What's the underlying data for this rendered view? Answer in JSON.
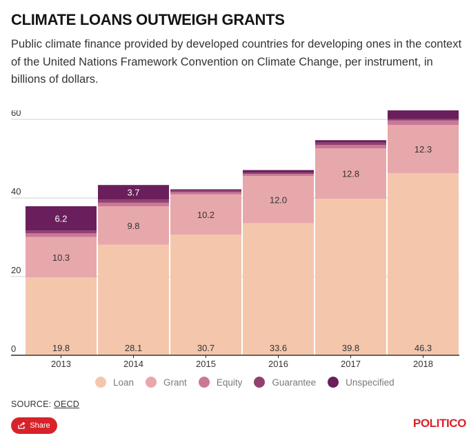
{
  "header": {
    "title": "CLIMATE LOANS OUTWEIGH GRANTS",
    "subtitle": "Public climate finance provided by developed countries for developing ones in the context of the United Nations Framework Convention on Climate Change, per instrument, in billions of dollars."
  },
  "chart_data": {
    "type": "bar",
    "stacked": true,
    "categories": [
      "2013",
      "2014",
      "2015",
      "2016",
      "2017",
      "2018"
    ],
    "series": [
      {
        "name": "Loan",
        "values": [
          19.8,
          28.1,
          30.7,
          33.6,
          39.8,
          46.3
        ],
        "color": "#f4c7ad"
      },
      {
        "name": "Grant",
        "values": [
          10.3,
          9.8,
          10.2,
          12.0,
          12.8,
          12.3
        ],
        "color": "#e7a8ab"
      },
      {
        "name": "Equity",
        "values": [
          0.9,
          0.9,
          0.6,
          0.5,
          0.9,
          1.1
        ],
        "color": "#c97896"
      },
      {
        "name": "Guarantee",
        "values": [
          0.7,
          0.8,
          0.4,
          0.4,
          0.6,
          0.4
        ],
        "color": "#93406f"
      },
      {
        "name": "Unspecified",
        "values": [
          6.2,
          3.7,
          0.3,
          0.6,
          0.6,
          2.3
        ],
        "color": "#6a1f5c"
      }
    ],
    "labels": {
      "Loan": [
        "19.8",
        "28.1",
        "30.7",
        "33.6",
        "39.8",
        "46.3"
      ],
      "Grant": [
        "10.3",
        "9.8",
        "10.2",
        "12.0",
        "12.8",
        "12.3"
      ],
      "Unspecified": [
        "6.2",
        "3.7",
        "",
        "",
        "",
        ""
      ]
    },
    "yticks": [
      "0",
      "20",
      "40",
      "60"
    ],
    "ylim": [
      0,
      60
    ],
    "grid": true,
    "legend_position": "bottom"
  },
  "footer": {
    "source_prefix": "SOURCE: ",
    "source_link": "OECD",
    "share_label": "Share",
    "logo": "POLITICO",
    "brand_color": "#d8222a"
  }
}
